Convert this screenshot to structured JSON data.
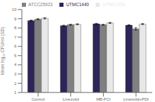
{
  "chart_data": {
    "type": "bar",
    "categories": [
      "Control",
      "Linezolid",
      "MB-PCI",
      "Linezolid+PDI"
    ],
    "series": [
      {
        "name": "UTMC1440",
        "color": "#2e2459",
        "values": [
          8.8,
          8.25,
          8.45,
          8.3
        ],
        "errors": [
          0.05,
          0.05,
          0.05,
          0.05
        ]
      },
      {
        "name": "ATCC25923",
        "color": "#808080",
        "values": [
          8.95,
          8.35,
          8.35,
          7.9
        ],
        "errors": [
          0.05,
          0.05,
          0.05,
          0.12
        ]
      },
      {
        "name": "UTMC1454",
        "color": "#e8e8e8",
        "values": [
          9.05,
          8.4,
          8.55,
          8.42
        ],
        "errors": [
          0.07,
          0.05,
          0.05,
          0.05
        ]
      }
    ],
    "ylim": [
      1,
      10
    ],
    "yticks": [
      1,
      2,
      3,
      4,
      5,
      6,
      7,
      8,
      9,
      10
    ],
    "ylabel": "Mean log₁₀ CFU/ml (SD)",
    "legend": "top",
    "grid": false
  }
}
